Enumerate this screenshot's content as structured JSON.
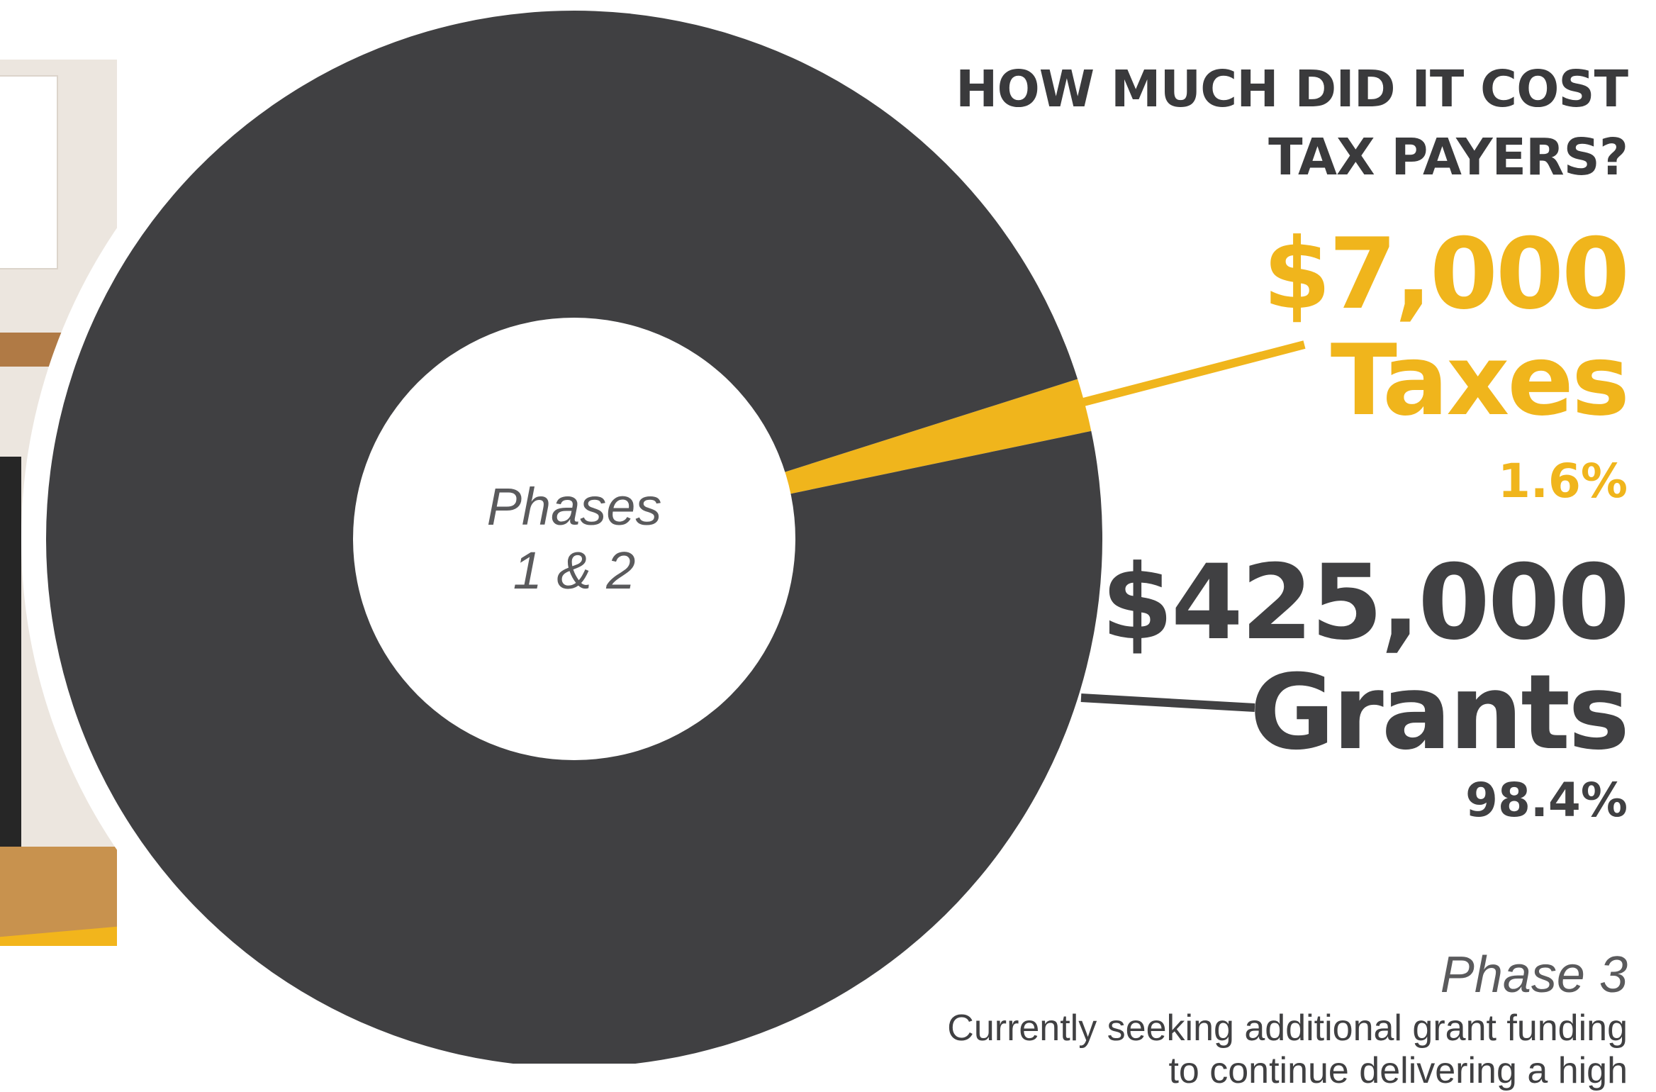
{
  "chart_data": {
    "type": "pie",
    "title": "HOW MUCH DID IT COST TAX PAYERS?",
    "center_label": "Phases 1 & 2",
    "slices": [
      {
        "label": "Taxes",
        "amount": "$7,000",
        "value": 7000,
        "percent": "1.6%",
        "color": "#f0b51c"
      },
      {
        "label": "Grants",
        "amount": "$425,000",
        "value": 425000,
        "percent": "98.4%",
        "color": "#404042"
      }
    ]
  },
  "title_lines": [
    "HOW MUCH DID IT COST",
    "TAX PAYERS?"
  ],
  "center_lines": [
    "Phases",
    "1 & 2"
  ],
  "phase3": {
    "title": "Phase 3",
    "body": "Currently seeking additional grant funding to continue delivering a high"
  },
  "colors": {
    "accent": "#f0b51c",
    "dark": "#404042",
    "muted": "#5a5a5c"
  }
}
